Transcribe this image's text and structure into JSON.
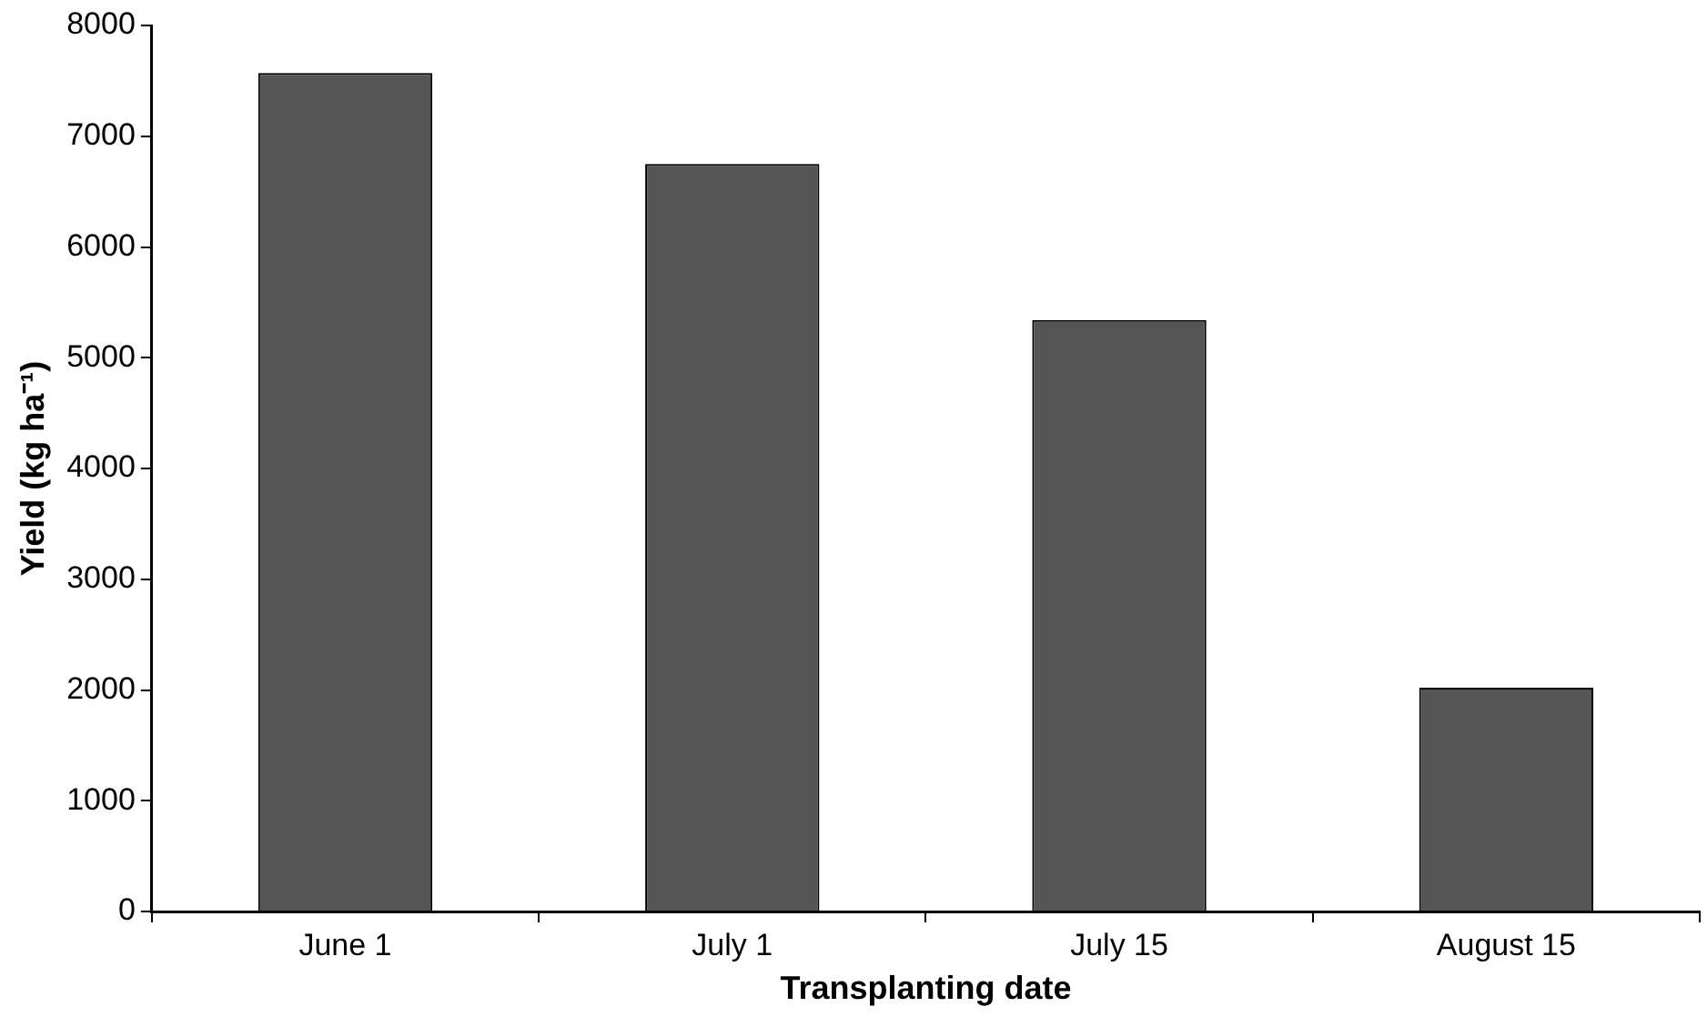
{
  "chart_data": {
    "type": "bar",
    "xlabel": "Transplanting date",
    "ylabel": "Yield (kg ha⁻¹)",
    "categories": [
      "June 1",
      "July 1",
      "July 15",
      "August 15"
    ],
    "values": [
      7570,
      6750,
      5340,
      2020
    ],
    "color": "#555555",
    "ylim": [
      0,
      8000
    ],
    "yticks": [
      0,
      1000,
      2000,
      3000,
      4000,
      5000,
      6000,
      7000,
      8000
    ],
    "grid": false,
    "legend": false
  }
}
